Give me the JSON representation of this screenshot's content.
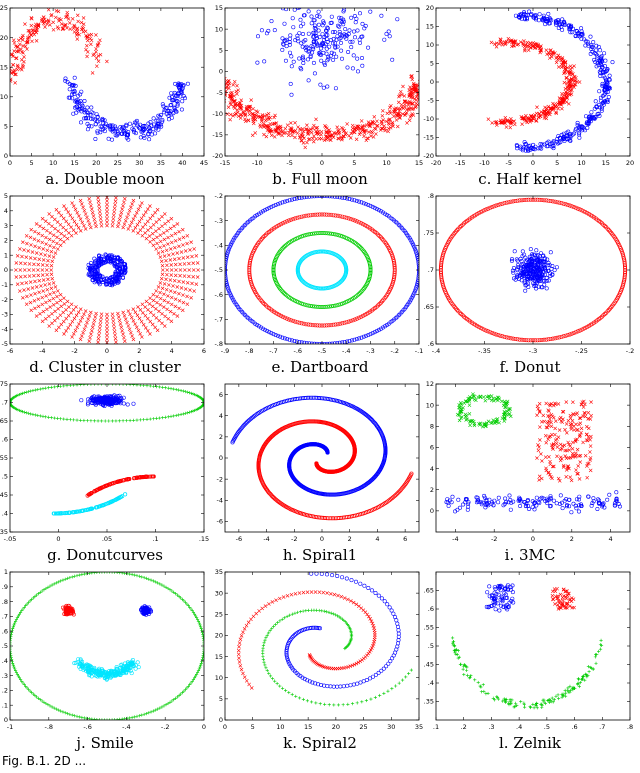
{
  "figure_caption": "Fig. B.1. 2D ...",
  "colors": {
    "red": "#ff0000",
    "blue": "#0000ff",
    "green": "#00cc00",
    "cyan": "#00e5ff",
    "axis": "#000000"
  },
  "chart_data": [
    {
      "id": "a",
      "type": "scatter",
      "caption": "a. Double moon",
      "xlim": [
        0,
        45
      ],
      "ylim": [
        0,
        25
      ],
      "xticks": [
        0,
        5,
        10,
        15,
        20,
        25,
        30,
        35,
        40,
        45
      ],
      "yticks": [
        0,
        5,
        10,
        15,
        20,
        25
      ],
      "series": [
        {
          "color": "red",
          "marker": "x",
          "shape": "arc",
          "params": {
            "cx": 11,
            "cy": 13,
            "rx": 10,
            "ry": 10,
            "a0": 20,
            "a1": 180,
            "spread": 2.0
          },
          "n": 180
        },
        {
          "color": "blue",
          "marker": "o",
          "shape": "arc",
          "params": {
            "cx": 27,
            "cy": 14,
            "rx": 13,
            "ry": 10,
            "a0": 190,
            "a1": 350,
            "spread": 1.6
          },
          "n": 260
        }
      ]
    },
    {
      "id": "b",
      "type": "scatter",
      "caption": "b. Full moon",
      "xlim": [
        -15,
        15
      ],
      "ylim": [
        -20,
        15
      ],
      "xticks": [
        -15,
        -10,
        -5,
        0,
        5,
        10,
        15
      ],
      "yticks": [
        -20,
        -15,
        -10,
        -5,
        0,
        5,
        10,
        15
      ],
      "series": [
        {
          "color": "red",
          "marker": "x",
          "shape": "arc",
          "params": {
            "cx": 0,
            "cy": -2,
            "rx": 15,
            "ry": 13,
            "a0": 180,
            "a1": 360,
            "spread": 2.2
          },
          "n": 550
        },
        {
          "color": "blue",
          "marker": "o",
          "shape": "blob",
          "params": {
            "cx": 0,
            "cy": 8,
            "rx": 4,
            "ry": 4.5
          },
          "n": 240
        }
      ]
    },
    {
      "id": "c",
      "type": "scatter",
      "caption": "c. Half kernel",
      "xlim": [
        -20,
        20
      ],
      "ylim": [
        -20,
        20
      ],
      "xticks": [
        -20,
        -15,
        -10,
        -5,
        0,
        5,
        10,
        15,
        20
      ],
      "yticks": [
        -20,
        -15,
        -10,
        -5,
        0,
        5,
        10,
        15,
        20
      ],
      "series": [
        {
          "color": "red",
          "marker": "x",
          "shape": "arc",
          "params": {
            "cx": -8,
            "cy": 0,
            "rx": 16,
            "ry": 11,
            "a0": -90,
            "a1": 90,
            "spread": 1.2
          },
          "n": 320
        },
        {
          "color": "blue",
          "marker": "o",
          "shape": "arc",
          "params": {
            "cx": -3,
            "cy": 0,
            "rx": 18,
            "ry": 18,
            "a0": -90,
            "a1": 90,
            "spread": 1.2
          },
          "n": 340
        }
      ]
    },
    {
      "id": "d",
      "type": "scatter",
      "caption": "d. Cluster in cluster",
      "xlim": [
        -6,
        6
      ],
      "ylim": [
        -5,
        5
      ],
      "xticks": [
        -6,
        -4,
        -2,
        0,
        2,
        4,
        6
      ],
      "yticks": [
        -5,
        -4,
        -3,
        -2,
        -1,
        0,
        1,
        2,
        3,
        4,
        5
      ],
      "series": [
        {
          "color": "red",
          "marker": "x",
          "shape": "rays",
          "params": {
            "cx": 0,
            "cy": 0,
            "r0": 3.0,
            "r1": 4.9,
            "sx": 1.15,
            "rays": 64,
            "per": 9
          }
        },
        {
          "color": "blue",
          "marker": "o",
          "shape": "ring",
          "params": {
            "cx": 0,
            "cy": 0,
            "r0": 0.5,
            "r1": 1.1,
            "sx": 1.1
          },
          "n": 260
        }
      ]
    },
    {
      "id": "e",
      "type": "scatter",
      "caption": "e. Dartboard",
      "xlim": [
        -0.9,
        -0.1
      ],
      "ylim": [
        -0.8,
        -0.2
      ],
      "xticks": [
        -0.9,
        -0.8,
        -0.7,
        -0.6,
        -0.5,
        -0.4,
        -0.3,
        -0.2,
        -0.1
      ],
      "yticks": [
        -0.8,
        -0.7,
        -0.6,
        -0.5,
        -0.4,
        -0.3,
        -0.2
      ],
      "series": [
        {
          "color": "blue",
          "marker": "o",
          "shape": "ellipse",
          "params": {
            "cx": -0.5,
            "cy": -0.5,
            "rx": 0.4,
            "ry": 0.3
          },
          "n": 240
        },
        {
          "color": "red",
          "marker": "o",
          "shape": "ellipse",
          "params": {
            "cx": -0.5,
            "cy": -0.5,
            "rx": 0.3,
            "ry": 0.225
          },
          "n": 200
        },
        {
          "color": "green",
          "marker": "o",
          "shape": "ellipse",
          "params": {
            "cx": -0.5,
            "cy": -0.5,
            "rx": 0.2,
            "ry": 0.15
          },
          "n": 160
        },
        {
          "color": "cyan",
          "marker": "o",
          "shape": "ellipse",
          "params": {
            "cx": -0.5,
            "cy": -0.5,
            "rx": 0.1,
            "ry": 0.075
          },
          "n": 120
        }
      ]
    },
    {
      "id": "f",
      "type": "scatter",
      "caption": "f. Donut",
      "xlim": [
        -0.4,
        -0.2
      ],
      "ylim": [
        0.6,
        0.8
      ],
      "xticks": [
        -0.4,
        -0.35,
        -0.3,
        -0.25,
        -0.2
      ],
      "yticks": [
        0.6,
        0.65,
        0.7,
        0.75,
        0.8
      ],
      "series": [
        {
          "color": "red",
          "marker": "o",
          "shape": "ellipse",
          "params": {
            "cx": -0.3,
            "cy": 0.7,
            "rx": 0.095,
            "ry": 0.095
          },
          "n": 260
        },
        {
          "color": "blue",
          "marker": "o",
          "shape": "blob",
          "params": {
            "cx": -0.3,
            "cy": 0.7,
            "rx": 0.009,
            "ry": 0.011
          },
          "n": 260
        }
      ]
    },
    {
      "id": "g",
      "type": "scatter",
      "caption": "g. Donutcurves",
      "xlim": [
        -0.05,
        0.15
      ],
      "ylim": [
        0.35,
        0.75
      ],
      "xticks": [
        -0.05,
        0,
        0.05,
        0.1,
        0.15
      ],
      "yticks": [
        0.35,
        0.4,
        0.45,
        0.5,
        0.55,
        0.6,
        0.65,
        0.7,
        0.75
      ],
      "series": [
        {
          "color": "green",
          "marker": "+",
          "shape": "ellipse",
          "params": {
            "cx": 0.05,
            "cy": 0.7,
            "rx": 0.1,
            "ry": 0.05
          },
          "n": 170
        },
        {
          "color": "blue",
          "marker": "o",
          "shape": "blob",
          "params": {
            "cx": 0.05,
            "cy": 0.705,
            "rx": 0.009,
            "ry": 0.006
          },
          "n": 200
        },
        {
          "color": "red",
          "marker": "o",
          "shape": "arc",
          "params": {
            "cx": 0.1,
            "cy": 0.32,
            "rx": 0.1,
            "ry": 0.18,
            "a0": 90,
            "a1": 135,
            "spread": 0
          },
          "n": 120
        },
        {
          "color": "cyan",
          "marker": "o",
          "shape": "arc",
          "params": {
            "cx": -0.005,
            "cy": 0.58,
            "rx": 0.105,
            "ry": 0.18,
            "a0": 270,
            "a1": 315,
            "spread": 0
          },
          "n": 120
        }
      ]
    },
    {
      "id": "h",
      "type": "scatter",
      "caption": "h. Spiral1",
      "xlim": [
        -7,
        7
      ],
      "ylim": [
        -7,
        7
      ],
      "xticks": [
        -6,
        -4,
        -2,
        0,
        2,
        4,
        6
      ],
      "yticks": [
        -6,
        -4,
        -2,
        0,
        2,
        4,
        6
      ],
      "series": [
        {
          "color": "blue",
          "marker": "o",
          "shape": "spiral",
          "params": {
            "phase": 0,
            "t0": 0.9,
            "t1": 9.2,
            "k": 0.72
          },
          "n": 420
        },
        {
          "color": "red",
          "marker": "o",
          "shape": "spiral",
          "params": {
            "phase": 3.1416,
            "t0": 0.9,
            "t1": 9.2,
            "k": 0.72
          },
          "n": 420
        }
      ]
    },
    {
      "id": "i",
      "type": "scatter",
      "caption": "i. 3MC",
      "xlim": [
        -5,
        5
      ],
      "ylim": [
        -2,
        12
      ],
      "xticks": [
        -4,
        -2,
        0,
        2,
        4
      ],
      "yticks": [
        0,
        2,
        4,
        6,
        8,
        10,
        12
      ],
      "series": [
        {
          "color": "green",
          "marker": "x",
          "shape": "ellipse",
          "params": {
            "cx": -2.5,
            "cy": 9.5,
            "rx": 1.2,
            "ry": 1.3,
            "jitter": 0.15
          },
          "n": 120
        },
        {
          "color": "red",
          "marker": "x",
          "shape": "rect",
          "params": {
            "x0": 0.2,
            "x1": 3.0,
            "y0": 2.7,
            "y1": 10.4
          },
          "n": 200
        },
        {
          "color": "blue",
          "marker": "o",
          "shape": "band",
          "params": {
            "x0": -4.5,
            "x1": 4.5,
            "y": 0.8,
            "h": 0.35
          },
          "n": 150
        }
      ]
    },
    {
      "id": "j",
      "type": "scatter",
      "caption": "j. Smile",
      "xlim": [
        -1,
        0
      ],
      "ylim": [
        0,
        1
      ],
      "xticks": [
        -1,
        -0.8,
        -0.6,
        -0.4,
        -0.2,
        0
      ],
      "yticks": [
        0,
        0.1,
        0.2,
        0.3,
        0.4,
        0.5,
        0.6,
        0.7,
        0.8,
        0.9,
        1
      ],
      "series": [
        {
          "color": "green",
          "marker": "+",
          "shape": "ellipse",
          "params": {
            "cx": -0.5,
            "cy": 0.5,
            "rx": 0.5,
            "ry": 0.5
          },
          "n": 240
        },
        {
          "color": "red",
          "marker": "o",
          "shape": "blob",
          "params": {
            "cx": -0.7,
            "cy": 0.74,
            "rx": 0.012,
            "ry": 0.013
          },
          "n": 70
        },
        {
          "color": "blue",
          "marker": "o",
          "shape": "blob",
          "params": {
            "cx": -0.3,
            "cy": 0.74,
            "rx": 0.012,
            "ry": 0.013
          },
          "n": 70
        },
        {
          "color": "cyan",
          "marker": "o",
          "shape": "arc",
          "params": {
            "cx": -0.5,
            "cy": 0.6,
            "rx": 0.2,
            "ry": 0.29,
            "a0": 225,
            "a1": 315,
            "spread": 0.03
          },
          "n": 240
        }
      ]
    },
    {
      "id": "k",
      "type": "scatter",
      "caption": "k. Spiral2",
      "xlim": [
        0,
        35
      ],
      "ylim": [
        0,
        35
      ],
      "xticks": [
        0,
        5,
        10,
        15,
        20,
        25,
        30,
        35
      ],
      "yticks": [
        0,
        5,
        10,
        15,
        20,
        25,
        30,
        35
      ],
      "series": [
        {
          "color": "blue",
          "marker": "o",
          "shape": "spiral2",
          "params": {
            "cx": 18,
            "cy": 18,
            "phase": 0,
            "t0": 1.8,
            "t1": 8.0,
            "k": 2.1
          },
          "n": 110
        },
        {
          "color": "red",
          "marker": "x",
          "shape": "spiral2",
          "params": {
            "cx": 18,
            "cy": 18,
            "phase": 2.094,
            "t0": 1.8,
            "t1": 8.0,
            "k": 2.1
          },
          "n": 110
        },
        {
          "color": "green",
          "marker": "+",
          "shape": "spiral2",
          "params": {
            "cx": 18,
            "cy": 18,
            "phase": 4.189,
            "t0": 1.8,
            "t1": 8.0,
            "k": 2.1
          },
          "n": 110
        }
      ]
    },
    {
      "id": "l",
      "type": "scatter",
      "caption": "l. Zelnik",
      "xlim": [
        0.1,
        0.8
      ],
      "ylim": [
        0.3,
        0.7
      ],
      "xticks": [
        0.1,
        0.2,
        0.3,
        0.4,
        0.5,
        0.6,
        0.7,
        0.8
      ],
      "yticks": [
        0.35,
        0.4,
        0.45,
        0.5,
        0.55,
        0.6,
        0.65
      ],
      "series": [
        {
          "color": "green",
          "marker": "+",
          "shape": "arc",
          "params": {
            "cx": 0.43,
            "cy": 0.58,
            "rx": 0.28,
            "ry": 0.24,
            "a0": 195,
            "a1": 345,
            "spread": 0.01
          },
          "n": 150
        },
        {
          "color": "blue",
          "marker": "o",
          "shape": "rect",
          "params": {
            "x0": 0.28,
            "x1": 0.38,
            "y0": 0.595,
            "y1": 0.665
          },
          "n": 70
        },
        {
          "color": "red",
          "marker": "x",
          "shape": "rect",
          "params": {
            "x0": 0.52,
            "x1": 0.6,
            "y0": 0.6,
            "y1": 0.655
          },
          "n": 55
        }
      ]
    }
  ]
}
